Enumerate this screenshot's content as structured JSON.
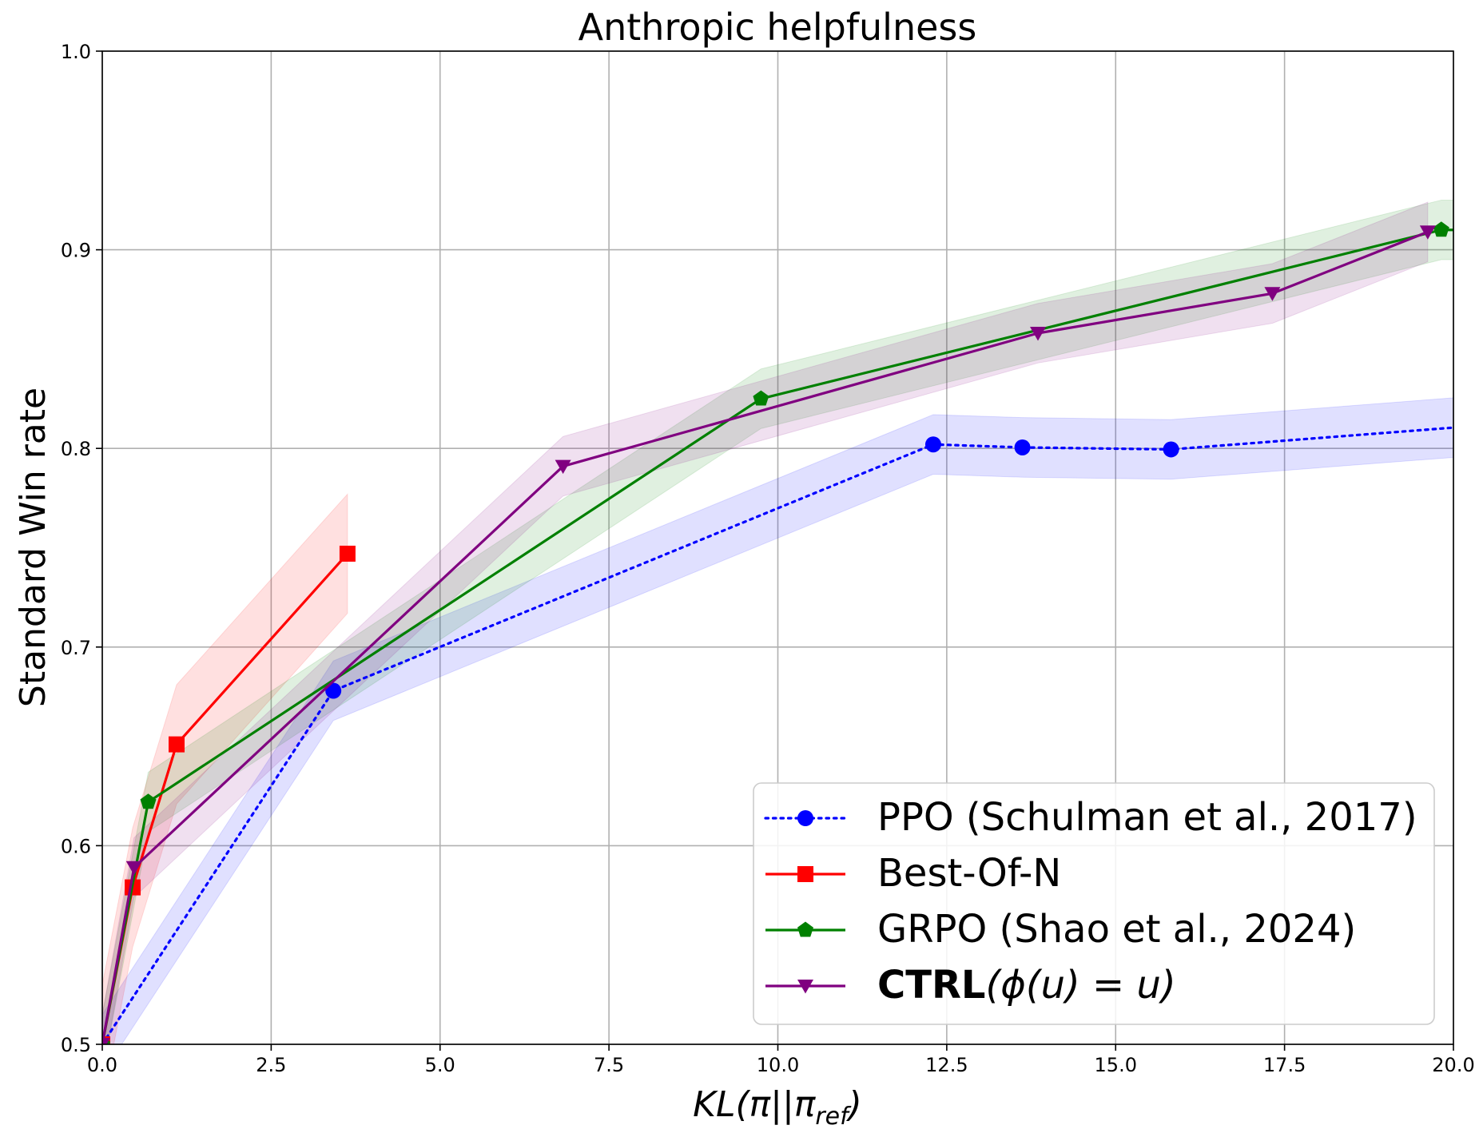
{
  "chart_data": {
    "type": "line",
    "title": "Anthropic helpfulness",
    "xlabel": {
      "main": "KL(π||π",
      "sub": "ref",
      "close": ")"
    },
    "ylabel": "Standard Win rate",
    "xlim": [
      0,
      20
    ],
    "ylim": [
      0.5,
      1.0
    ],
    "xticks": [
      0,
      2.5,
      5,
      7.5,
      10,
      12.5,
      15,
      17.5,
      20
    ],
    "xtick_labels": [
      "0.0",
      "2.5",
      "5.0",
      "7.5",
      "10.0",
      "12.5",
      "15.0",
      "17.5",
      "20.0"
    ],
    "yticks": [
      0.5,
      0.6,
      0.7,
      0.8,
      0.9,
      1.0
    ],
    "ytick_labels": [
      "0.5",
      "0.6",
      "0.7",
      "0.8",
      "0.9",
      "1.0"
    ],
    "grid": true,
    "legend_position": "bottom-right",
    "series": [
      {
        "name": "PPO (Schulman et al., 2017)",
        "color": "#0000ff",
        "linestyle": "dotted",
        "marker": "circle",
        "x": [
          0.0,
          3.42,
          12.3,
          13.62,
          15.82,
          20.2
        ],
        "y": [
          0.5,
          0.678,
          0.802,
          0.8005,
          0.7995,
          0.811
        ],
        "band": 0.015,
        "band_color": "#0000ff"
      },
      {
        "name": "Best-Of-N",
        "color": "#ff0000",
        "linestyle": "solid",
        "marker": "square",
        "x": [
          0.0,
          0.45,
          1.1,
          3.63
        ],
        "y": [
          0.5,
          0.579,
          0.651,
          0.747
        ],
        "band": 0.03,
        "band_color": "#ff0000"
      },
      {
        "name": "GRPO (Shao et al., 2024)",
        "color": "#008000",
        "linestyle": "solid",
        "marker": "pentagon",
        "x": [
          0.0,
          0.68,
          9.75,
          19.82,
          20.2
        ],
        "y": [
          0.5,
          0.622,
          0.825,
          0.91,
          0.91
        ],
        "band": 0.015,
        "band_color": "#008000"
      },
      {
        "name_bold": "CTRL",
        "name_rest": "(ϕ(u) = u)",
        "color": "#800080",
        "linestyle": "solid",
        "marker": "triangle-down",
        "x": [
          0.0,
          0.47,
          6.82,
          13.85,
          17.32,
          19.62
        ],
        "y": [
          0.5,
          0.589,
          0.791,
          0.858,
          0.878,
          0.909
        ],
        "band": 0.015,
        "band_color": "#800080"
      }
    ]
  }
}
